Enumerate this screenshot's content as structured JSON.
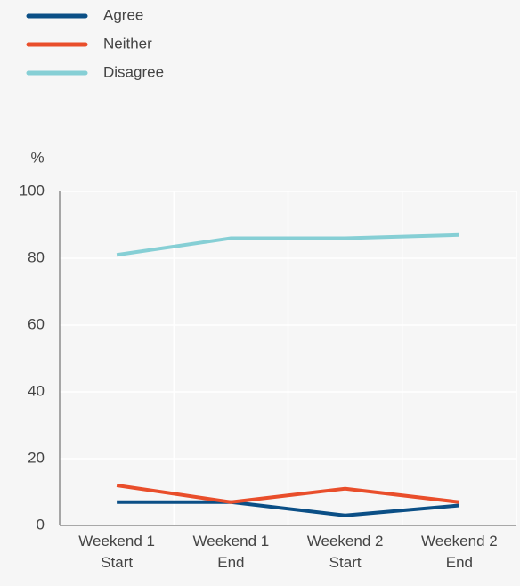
{
  "chart_data": {
    "type": "line",
    "y_label": "%",
    "categories": [
      "Weekend 1 Start",
      "Weekend 1 End",
      "Weekend 2 Start",
      "Weekend 2 End"
    ],
    "series": [
      {
        "name": "Agree",
        "color": "#0b4f86",
        "values": [
          7,
          7,
          3,
          6
        ]
      },
      {
        "name": "Neither",
        "color": "#e94e2b",
        "values": [
          12,
          7,
          11,
          7
        ]
      },
      {
        "name": "Disagree",
        "color": "#86cfd5",
        "values": [
          81,
          86,
          86,
          87
        ]
      }
    ],
    "ylim": [
      0,
      100
    ],
    "yticks": [
      0,
      20,
      40,
      60,
      80,
      100
    ],
    "grid": true,
    "legend": "top-left"
  }
}
